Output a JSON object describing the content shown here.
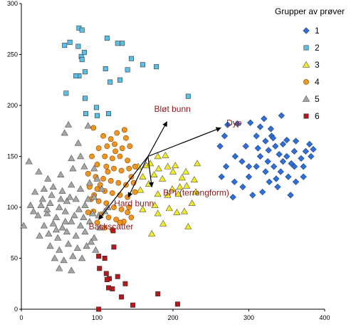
{
  "chart_data": {
    "type": "scatter",
    "xlim": [
      0,
      400
    ],
    "ylim": [
      0,
      300
    ],
    "xticks": [
      0,
      100,
      200,
      300,
      400
    ],
    "yticks": [
      0,
      50,
      100,
      150,
      200,
      250,
      300
    ],
    "grid": false,
    "legend": {
      "title": "Grupper av prøver",
      "position": "top-right"
    },
    "series": [
      {
        "name": "1",
        "marker": "diamond",
        "color": "#2f6fd6",
        "points": [
          [
            272,
            181
          ],
          [
            285,
            182
          ],
          [
            302,
            183
          ],
          [
            315,
            179
          ],
          [
            329,
            177
          ],
          [
            343,
            190
          ],
          [
            330,
            170
          ],
          [
            350,
            166
          ],
          [
            362,
            165
          ],
          [
            380,
            162
          ],
          [
            385,
            157
          ],
          [
            360,
            155
          ],
          [
            340,
            152
          ],
          [
            326,
            156
          ],
          [
            312,
            158
          ],
          [
            296,
            160
          ],
          [
            282,
            150
          ],
          [
            262,
            160
          ],
          [
            268,
            170
          ],
          [
            291,
            145
          ],
          [
            300,
            140
          ],
          [
            310,
            140
          ],
          [
            322,
            135
          ],
          [
            333,
            140
          ],
          [
            345,
            145
          ],
          [
            352,
            130
          ],
          [
            362,
            125
          ],
          [
            372,
            140
          ],
          [
            382,
            150
          ],
          [
            375,
            155
          ],
          [
            369,
            148
          ],
          [
            356,
            143
          ],
          [
            342,
            135
          ],
          [
            336,
            128
          ],
          [
            327,
            125
          ],
          [
            318,
            115
          ],
          [
            305,
            112
          ],
          [
            292,
            120
          ],
          [
            279,
            110
          ],
          [
            264,
            130
          ],
          [
            270,
            140
          ],
          [
            281,
            125
          ],
          [
            300,
            130
          ],
          [
            315,
            150
          ],
          [
            322,
            165
          ],
          [
            335,
            160
          ],
          [
            350,
            150
          ],
          [
            360,
            140
          ],
          [
            372,
            130
          ],
          [
            338,
            120
          ],
          [
            355,
            112
          ],
          [
            325,
            145
          ],
          [
            310,
            170
          ],
          [
            320,
            187
          ],
          [
            332,
            168
          ],
          [
            345,
            162
          ]
        ]
      },
      {
        "name": "2",
        "marker": "square",
        "color": "#5bc0e8",
        "points": [
          [
            76,
            276
          ],
          [
            80,
            274
          ],
          [
            57,
            259
          ],
          [
            64,
            262
          ],
          [
            75,
            258
          ],
          [
            79,
            248
          ],
          [
            83,
            252
          ],
          [
            80,
            245
          ],
          [
            113,
            266
          ],
          [
            127,
            261
          ],
          [
            133,
            261
          ],
          [
            84,
            233
          ],
          [
            76,
            229
          ],
          [
            72,
            229
          ],
          [
            140,
            235
          ],
          [
            178,
            238
          ],
          [
            111,
            236
          ],
          [
            117,
            223
          ],
          [
            130,
            225
          ],
          [
            160,
            240
          ],
          [
            145,
            246
          ],
          [
            220,
            209
          ],
          [
            84,
            207
          ],
          [
            85,
            192
          ],
          [
            59,
            212
          ],
          [
            99,
            198
          ],
          [
            100,
            190
          ],
          [
            115,
            192
          ]
        ]
      },
      {
        "name": "3",
        "marker": "triangle",
        "color": "#f2ec22",
        "points": [
          [
            154,
            140
          ],
          [
            165,
            141
          ],
          [
            180,
            150
          ],
          [
            190,
            151
          ],
          [
            170,
            143
          ],
          [
            181,
            138
          ],
          [
            193,
            140
          ],
          [
            203,
            141
          ],
          [
            200,
            135
          ],
          [
            212,
            129
          ],
          [
            218,
            121
          ],
          [
            228,
            127
          ],
          [
            232,
            143
          ],
          [
            160,
            130
          ],
          [
            175,
            132
          ],
          [
            186,
            128
          ],
          [
            209,
            120
          ],
          [
            199,
            118
          ],
          [
            180,
            113
          ],
          [
            168,
            123
          ],
          [
            157,
            117
          ],
          [
            207,
            113
          ],
          [
            230,
            115
          ],
          [
            225,
            104
          ],
          [
            215,
            96
          ],
          [
            195,
            99
          ],
          [
            176,
            102
          ],
          [
            160,
            98
          ],
          [
            205,
            95
          ],
          [
            187,
            84
          ],
          [
            220,
            81
          ],
          [
            180,
            94
          ],
          [
            172,
            74
          ],
          [
            217,
            135
          ],
          [
            193,
            112
          ]
        ]
      },
      {
        "name": "4",
        "marker": "circle",
        "color": "#f0951f",
        "points": [
          [
            95,
            178
          ],
          [
            108,
            170
          ],
          [
            118,
            167
          ],
          [
            126,
            173
          ],
          [
            136,
            176
          ],
          [
            113,
            160
          ],
          [
            123,
            162
          ],
          [
            133,
            158
          ],
          [
            143,
            160
          ],
          [
            102,
            158
          ],
          [
            110,
            150
          ],
          [
            120,
            148
          ],
          [
            130,
            150
          ],
          [
            140,
            146
          ],
          [
            93,
            150
          ],
          [
            100,
            142
          ],
          [
            112,
            140
          ],
          [
            122,
            138
          ],
          [
            132,
            136
          ],
          [
            142,
            138
          ],
          [
            88,
            133
          ],
          [
            98,
            130
          ],
          [
            108,
            128
          ],
          [
            118,
            126
          ],
          [
            128,
            124
          ],
          [
            138,
            122
          ],
          [
            148,
            124
          ],
          [
            90,
            120
          ],
          [
            100,
            118
          ],
          [
            110,
            116
          ],
          [
            120,
            114
          ],
          [
            130,
            112
          ],
          [
            140,
            110
          ],
          [
            92,
            108
          ],
          [
            102,
            106
          ],
          [
            112,
            104
          ],
          [
            122,
            100
          ],
          [
            132,
            98
          ],
          [
            142,
            100
          ],
          [
            95,
            96
          ],
          [
            105,
            93
          ],
          [
            115,
            90
          ],
          [
            125,
            88
          ],
          [
            135,
            86
          ],
          [
            145,
            90
          ],
          [
            100,
            85
          ],
          [
            110,
            80
          ],
          [
            120,
            78
          ],
          [
            130,
            85
          ],
          [
            140,
            95
          ],
          [
            150,
            115
          ],
          [
            145,
            130
          ],
          [
            88,
            95
          ],
          [
            96,
            112
          ],
          [
            104,
            122
          ],
          [
            114,
            135
          ],
          [
            124,
            155
          ],
          [
            138,
            168
          ],
          [
            150,
            140
          ]
        ]
      },
      {
        "name": "5",
        "marker": "triangle",
        "color": "#a6a6a6",
        "points": [
          [
            62,
            181
          ],
          [
            57,
            173
          ],
          [
            75,
            163
          ],
          [
            88,
            180
          ],
          [
            66,
            148
          ],
          [
            78,
            150
          ],
          [
            10,
            145
          ],
          [
            23,
            135
          ],
          [
            35,
            128
          ],
          [
            52,
            132
          ],
          [
            68,
            138
          ],
          [
            83,
            140
          ],
          [
            96,
            138
          ],
          [
            18,
            115
          ],
          [
            30,
            118
          ],
          [
            42,
            120
          ],
          [
            54,
            116
          ],
          [
            66,
            122
          ],
          [
            78,
            118
          ],
          [
            90,
            124
          ],
          [
            100,
            128
          ],
          [
            26,
            102
          ],
          [
            38,
            104
          ],
          [
            50,
            100
          ],
          [
            60,
            106
          ],
          [
            72,
            108
          ],
          [
            84,
            102
          ],
          [
            96,
            110
          ],
          [
            22,
            92
          ],
          [
            34,
            94
          ],
          [
            46,
            90
          ],
          [
            58,
            96
          ],
          [
            70,
            92
          ],
          [
            82,
            90
          ],
          [
            94,
            94
          ],
          [
            30,
            82
          ],
          [
            42,
            84
          ],
          [
            54,
            80
          ],
          [
            66,
            86
          ],
          [
            78,
            82
          ],
          [
            90,
            86
          ],
          [
            102,
            92
          ],
          [
            3,
            82
          ],
          [
            12,
            102
          ],
          [
            24,
            72
          ],
          [
            36,
            74
          ],
          [
            48,
            70
          ],
          [
            60,
            76
          ],
          [
            72,
            72
          ],
          [
            84,
            76
          ],
          [
            96,
            70
          ],
          [
            38,
            62
          ],
          [
            50,
            58
          ],
          [
            62,
            64
          ],
          [
            74,
            60
          ],
          [
            86,
            62
          ],
          [
            98,
            58
          ],
          [
            44,
            50
          ],
          [
            56,
            48
          ],
          [
            68,
            52
          ],
          [
            80,
            50
          ],
          [
            50,
            40
          ],
          [
            66,
            38
          ],
          [
            92,
            66
          ],
          [
            104,
            80
          ],
          [
            110,
            96
          ],
          [
            88,
            108
          ],
          [
            76,
            98
          ],
          [
            64,
            110
          ],
          [
            40,
            112
          ],
          [
            28,
            108
          ],
          [
            16,
            96
          ],
          [
            106,
            118
          ],
          [
            114,
            100
          ],
          [
            58,
            86
          ],
          [
            46,
            78
          ],
          [
            34,
            98
          ],
          [
            52,
            108
          ]
        ]
      },
      {
        "name": "6",
        "marker": "square",
        "color": "#b5161b",
        "points": [
          [
            121,
            77
          ],
          [
            102,
            52
          ],
          [
            110,
            50
          ],
          [
            122,
            61
          ],
          [
            103,
            40
          ],
          [
            112,
            35
          ],
          [
            116,
            30
          ],
          [
            113,
            29
          ],
          [
            127,
            32
          ],
          [
            137,
            25
          ],
          [
            115,
            21
          ],
          [
            120,
            20
          ],
          [
            132,
            12
          ],
          [
            147,
            4
          ],
          [
            102,
            0
          ],
          [
            180,
            15
          ],
          [
            206,
            5
          ]
        ]
      }
    ],
    "vectors": {
      "origin": [
        167,
        150
      ],
      "arrows": [
        {
          "label": "Bløt bunn",
          "end": [
            192,
            184
          ]
        },
        {
          "label": "Dyp",
          "end": [
            263,
            178
          ]
        },
        {
          "label": "BPI (terrengform)",
          "end": [
            172,
            120
          ]
        },
        {
          "label": "Hard bunn",
          "end": [
            141,
            110
          ]
        },
        {
          "label": "Backscatter",
          "end": [
            102,
            88
          ]
        }
      ]
    }
  }
}
